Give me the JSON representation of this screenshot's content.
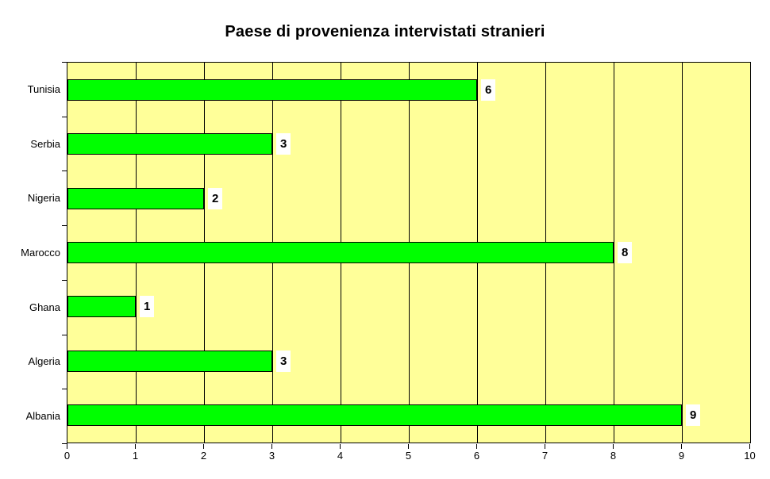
{
  "header": {
    "title": "Paese di provenienza intervistati stranieri"
  },
  "colors": {
    "page_bg": "#FFFFFF",
    "plot_bg": "#FFFF99",
    "bar_fill": "#00FF00",
    "bar_border": "#000000",
    "axis_line": "#000000",
    "gridline": "#000000",
    "value_label_bg": "#FFFFFF",
    "text": "#000000"
  },
  "chart_data": {
    "type": "bar",
    "orientation": "horizontal",
    "title": "Paese di provenienza intervistati stranieri",
    "categories": [
      "Tunisia",
      "Serbia",
      "Nigeria",
      "Marocco",
      "Ghana",
      "Algeria",
      "Albania"
    ],
    "values": [
      6,
      3,
      2,
      8,
      1,
      3,
      9
    ],
    "data_labels": [
      "6",
      "3",
      "2",
      "8",
      "1",
      "3",
      "9"
    ],
    "xlabel": "",
    "ylabel": "",
    "xlim": [
      0,
      10
    ],
    "xticks": [
      "0",
      "1",
      "2",
      "3",
      "4",
      "5",
      "6",
      "7",
      "8",
      "9",
      "10"
    ],
    "grid": "vertical-major",
    "legend": "none",
    "data_labels_style": "bold-on-white-box-right-of-bar"
  }
}
